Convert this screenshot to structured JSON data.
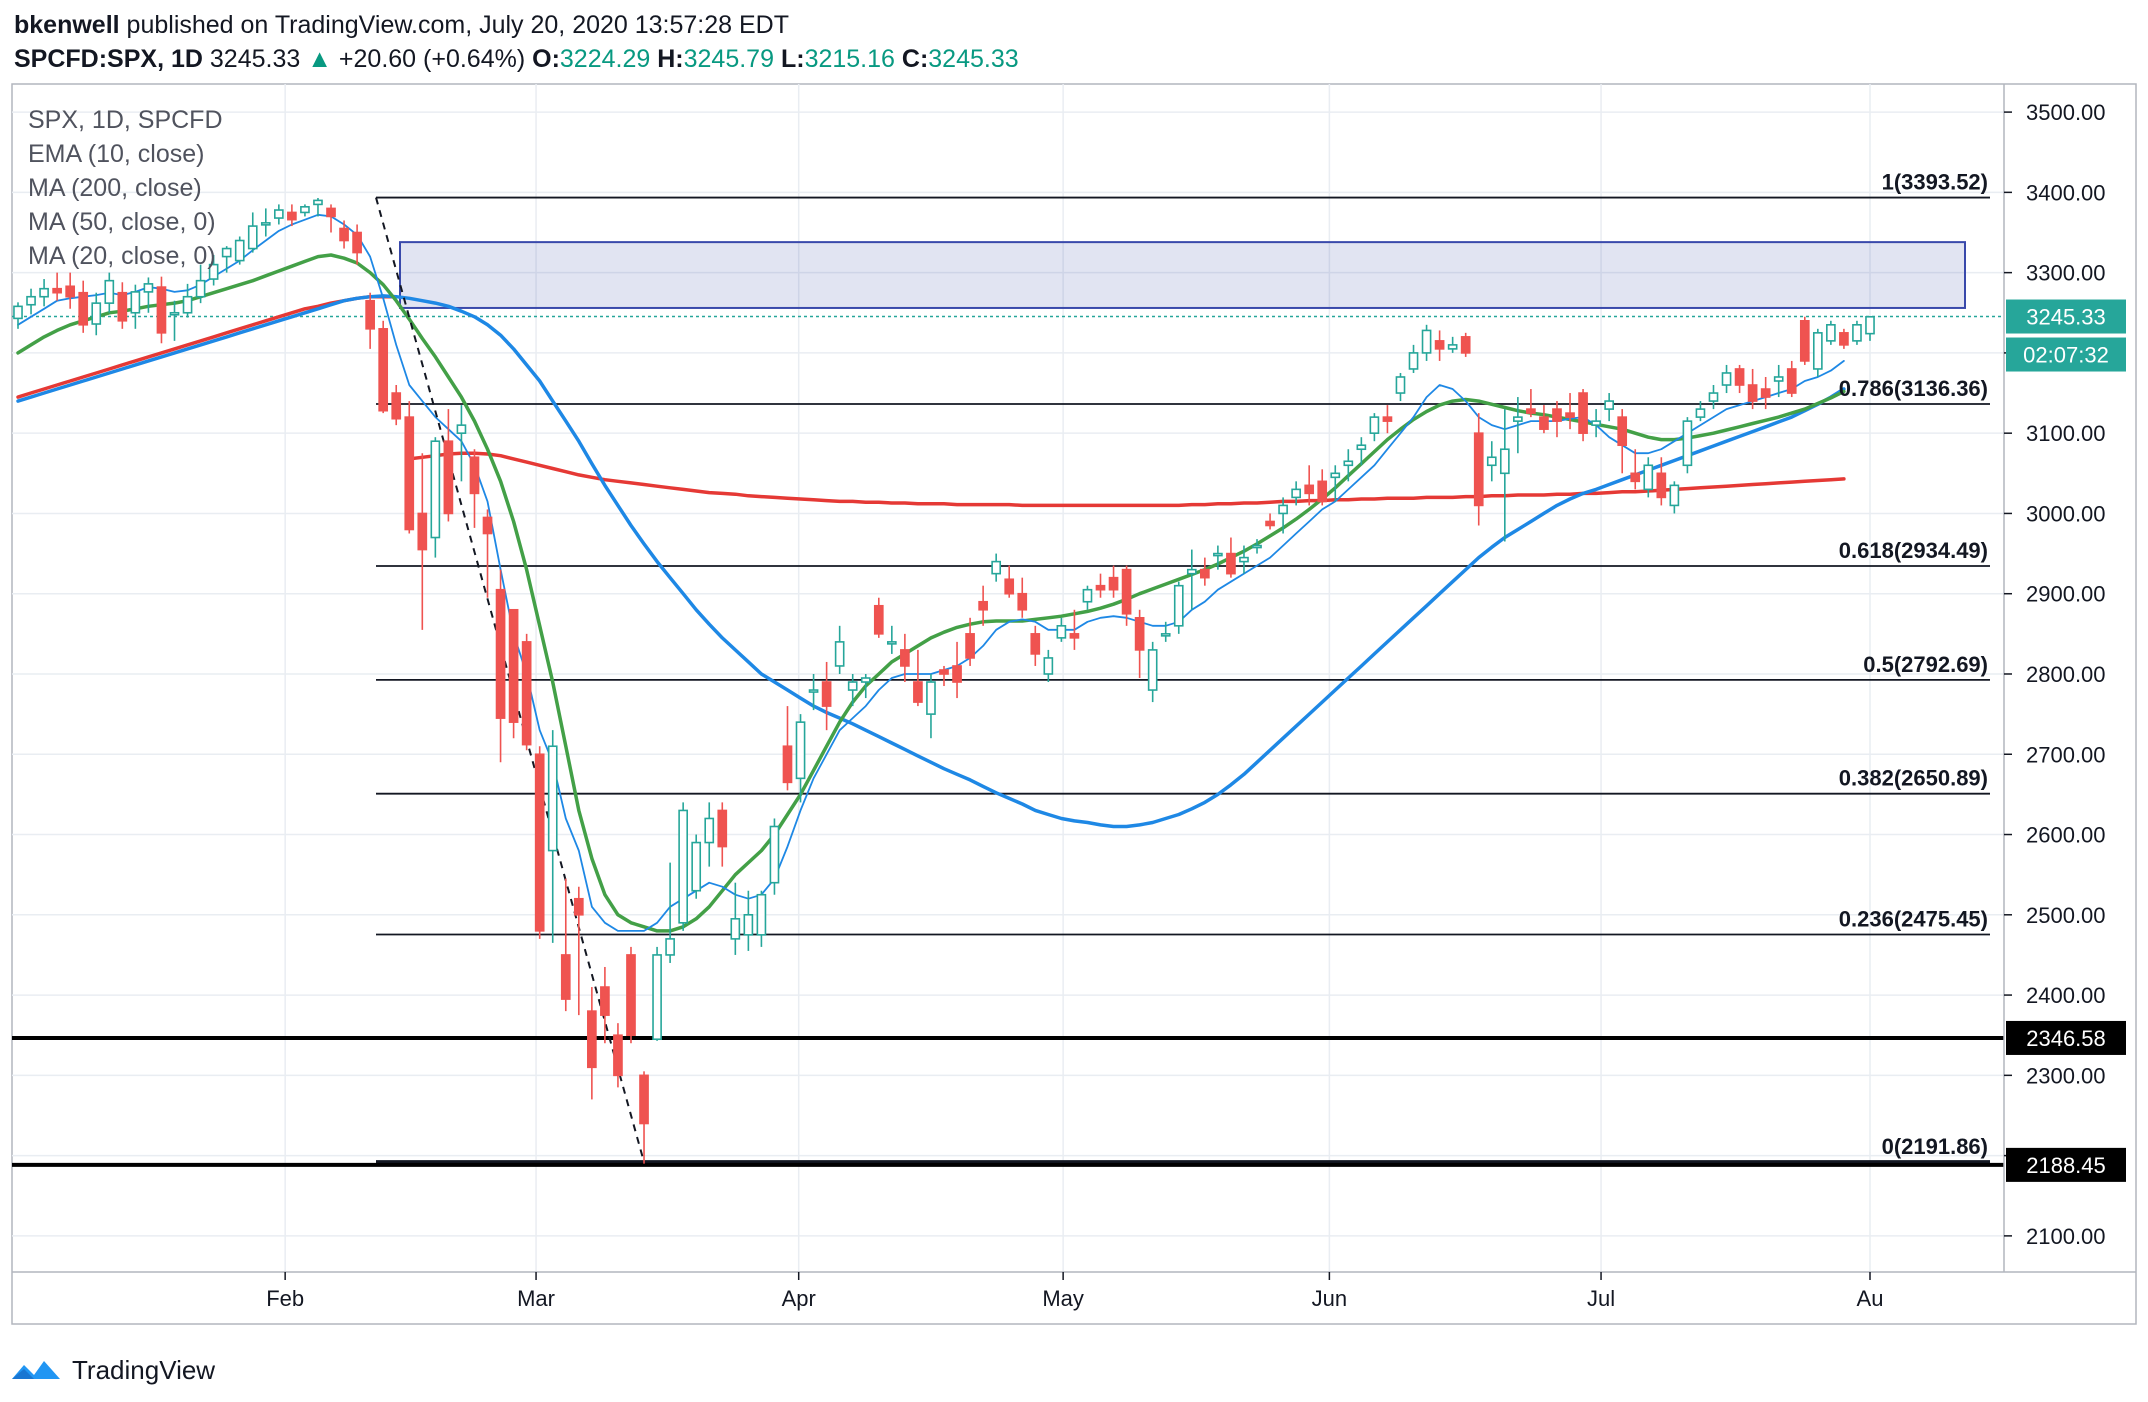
{
  "header": {
    "author": "bkenwell",
    "published": "published on TradingView.com, July 20, 2020 13:57:28 EDT",
    "symbol": "SPCFD:SPX, 1D",
    "price": "3245.33",
    "change": "+20.60 (+0.64%)",
    "open_label": "O:",
    "open": "3224.29",
    "high_label": "H:",
    "high": "3245.79",
    "low_label": "L:",
    "low": "3215.16",
    "close_label": "C:",
    "close": "3245.33"
  },
  "legend": {
    "symbol_line": "SPX, 1D, SPCFD",
    "indicators": [
      "EMA (10, close)",
      "MA (200, close)",
      "MA (50, close, 0)",
      "MA (20, close, 0)"
    ]
  },
  "footer": {
    "brand": "TradingView"
  },
  "colors": {
    "up": "#26a69a",
    "down": "#ef5350",
    "ema10": "#1e88e5",
    "ma200": "#e53935",
    "ma50": "#1e88e5",
    "ma20": "#43a047",
    "zone": "#3949ab",
    "grid": "#e9edf2"
  },
  "chart_data": {
    "type": "candlestick",
    "x_tick_labels": [
      "Feb",
      "Mar",
      "Apr",
      "May",
      "Jun",
      "Jul",
      "Au"
    ],
    "y_ticks": [
      2100,
      2200,
      2300,
      2400,
      2500,
      2600,
      2700,
      2800,
      2900,
      3000,
      3100,
      3200,
      3300,
      3400,
      3500
    ],
    "y_tick_labels": [
      "2100.00",
      "2200.00",
      "2300.00",
      "2400.00",
      "2500.00",
      "2600.00",
      "2700.00",
      "2800.00",
      "2900.00",
      "3000.00",
      "3100.00",
      "3200.00",
      "3300.00",
      "3400.00",
      "3500.00"
    ],
    "ylim": [
      2055,
      3535
    ],
    "candles": [
      [
        3243,
        3263,
        3230,
        3258
      ],
      [
        3260,
        3280,
        3248,
        3270
      ],
      [
        3270,
        3292,
        3258,
        3280
      ],
      [
        3280,
        3300,
        3265,
        3275
      ],
      [
        3283,
        3300,
        3255,
        3270
      ],
      [
        3275,
        3290,
        3225,
        3235
      ],
      [
        3236,
        3275,
        3222,
        3262
      ],
      [
        3262,
        3300,
        3250,
        3290
      ],
      [
        3275,
        3288,
        3230,
        3240
      ],
      [
        3250,
        3285,
        3230,
        3276
      ],
      [
        3276,
        3294,
        3250,
        3286
      ],
      [
        3282,
        3295,
        3212,
        3225
      ],
      [
        3250,
        3265,
        3215,
        3250
      ],
      [
        3250,
        3286,
        3244,
        3270
      ],
      [
        3270,
        3310,
        3262,
        3290
      ],
      [
        3292,
        3322,
        3284,
        3310
      ],
      [
        3320,
        3333,
        3300,
        3330
      ],
      [
        3315,
        3345,
        3310,
        3340
      ],
      [
        3330,
        3375,
        3325,
        3358
      ],
      [
        3360,
        3380,
        3345,
        3362
      ],
      [
        3368,
        3385,
        3360,
        3378
      ],
      [
        3375,
        3385,
        3358,
        3366
      ],
      [
        3375,
        3385,
        3370,
        3382
      ],
      [
        3385,
        3393,
        3370,
        3390
      ],
      [
        3380,
        3385,
        3350,
        3370
      ],
      [
        3355,
        3365,
        3330,
        3340
      ],
      [
        3350,
        3360,
        3310,
        3325
      ],
      [
        3265,
        3275,
        3205,
        3230
      ],
      [
        3230,
        3240,
        3125,
        3128
      ],
      [
        3150,
        3160,
        3110,
        3118
      ],
      [
        3120,
        3140,
        2975,
        2980
      ],
      [
        3000,
        3075,
        2855,
        2955
      ],
      [
        2970,
        3095,
        2945,
        3090
      ],
      [
        3090,
        3130,
        2990,
        3000
      ],
      [
        3100,
        3135,
        3040,
        3110
      ],
      [
        3070,
        3080,
        2982,
        3025
      ],
      [
        2995,
        3005,
        2895,
        2975
      ],
      [
        2905,
        2930,
        2690,
        2745
      ],
      [
        2880,
        2880,
        2720,
        2740
      ],
      [
        2840,
        2850,
        2705,
        2712
      ],
      [
        2700,
        2710,
        2470,
        2480
      ],
      [
        2580,
        2730,
        2465,
        2710
      ],
      [
        2450,
        2545,
        2380,
        2395
      ],
      [
        2520,
        2535,
        2375,
        2500
      ],
      [
        2380,
        2410,
        2270,
        2310
      ],
      [
        2410,
        2435,
        2340,
        2375
      ],
      [
        2350,
        2365,
        2285,
        2300
      ],
      [
        2450,
        2460,
        2340,
        2350
      ],
      [
        2300,
        2305,
        2190,
        2240
      ],
      [
        2345,
        2460,
        2343,
        2450
      ],
      [
        2450,
        2565,
        2440,
        2470
      ],
      [
        2490,
        2640,
        2480,
        2630
      ],
      [
        2530,
        2600,
        2520,
        2590
      ],
      [
        2590,
        2640,
        2560,
        2620
      ],
      [
        2630,
        2640,
        2560,
        2585
      ],
      [
        2470,
        2540,
        2450,
        2495
      ],
      [
        2475,
        2530,
        2455,
        2500
      ],
      [
        2475,
        2530,
        2460,
        2525
      ],
      [
        2540,
        2620,
        2525,
        2610
      ],
      [
        2710,
        2760,
        2655,
        2665
      ],
      [
        2670,
        2750,
        2640,
        2740
      ],
      [
        2780,
        2800,
        2755,
        2780
      ],
      [
        2790,
        2815,
        2730,
        2760
      ],
      [
        2810,
        2860,
        2800,
        2840
      ],
      [
        2780,
        2800,
        2760,
        2790
      ],
      [
        2790,
        2800,
        2770,
        2795
      ],
      [
        2885,
        2895,
        2845,
        2850
      ],
      [
        2840,
        2860,
        2825,
        2840
      ],
      [
        2830,
        2850,
        2790,
        2810
      ],
      [
        2790,
        2830,
        2760,
        2765
      ],
      [
        2750,
        2800,
        2720,
        2790
      ],
      [
        2805,
        2810,
        2785,
        2800
      ],
      [
        2810,
        2840,
        2770,
        2790
      ],
      [
        2850,
        2870,
        2810,
        2820
      ],
      [
        2890,
        2910,
        2860,
        2880
      ],
      [
        2925,
        2950,
        2915,
        2940
      ],
      [
        2918,
        2935,
        2895,
        2900
      ],
      [
        2900,
        2920,
        2870,
        2880
      ],
      [
        2850,
        2860,
        2810,
        2825
      ],
      [
        2800,
        2830,
        2790,
        2820
      ],
      [
        2845,
        2870,
        2840,
        2860
      ],
      [
        2850,
        2880,
        2830,
        2845
      ],
      [
        2890,
        2910,
        2880,
        2905
      ],
      [
        2910,
        2925,
        2895,
        2905
      ],
      [
        2920,
        2935,
        2895,
        2905
      ],
      [
        2930,
        2935,
        2860,
        2875
      ],
      [
        2870,
        2880,
        2795,
        2830
      ],
      [
        2780,
        2840,
        2765,
        2830
      ],
      [
        2850,
        2865,
        2840,
        2850
      ],
      [
        2860,
        2915,
        2850,
        2910
      ],
      [
        2925,
        2955,
        2880,
        2930
      ],
      [
        2930,
        2945,
        2910,
        2920
      ],
      [
        2950,
        2960,
        2930,
        2950
      ],
      [
        2950,
        2970,
        2920,
        2925
      ],
      [
        2940,
        2960,
        2925,
        2945
      ],
      [
        2960,
        2968,
        2950,
        2960
      ],
      [
        2990,
        3000,
        2980,
        2985
      ],
      [
        3000,
        3020,
        2975,
        3010
      ],
      [
        3020,
        3040,
        3010,
        3030
      ],
      [
        3035,
        3060,
        3010,
        3025
      ],
      [
        3040,
        3055,
        3010,
        3015
      ],
      [
        3045,
        3060,
        3015,
        3050
      ],
      [
        3060,
        3080,
        3040,
        3065
      ],
      [
        3080,
        3095,
        3060,
        3085
      ],
      [
        3100,
        3125,
        3090,
        3120
      ],
      [
        3120,
        3135,
        3100,
        3115
      ],
      [
        3150,
        3175,
        3140,
        3170
      ],
      [
        3180,
        3210,
        3175,
        3200
      ],
      [
        3200,
        3235,
        3190,
        3228
      ],
      [
        3215,
        3228,
        3190,
        3205
      ],
      [
        3205,
        3220,
        3200,
        3210
      ],
      [
        3220,
        3225,
        3195,
        3200
      ],
      [
        3100,
        3125,
        2985,
        3010
      ],
      [
        3060,
        3090,
        3040,
        3070
      ],
      [
        3050,
        3130,
        2965,
        3080
      ],
      [
        3115,
        3145,
        3075,
        3120
      ],
      [
        3130,
        3155,
        3120,
        3125
      ],
      [
        3120,
        3135,
        3100,
        3105
      ],
      [
        3130,
        3140,
        3095,
        3115
      ],
      [
        3125,
        3150,
        3105,
        3120
      ],
      [
        3150,
        3155,
        3090,
        3100
      ],
      [
        3110,
        3130,
        3095,
        3115
      ],
      [
        3130,
        3150,
        3115,
        3140
      ],
      [
        3120,
        3130,
        3050,
        3085
      ],
      [
        3050,
        3080,
        3030,
        3040
      ],
      [
        3030,
        3070,
        3020,
        3060
      ],
      [
        3050,
        3070,
        3010,
        3020
      ],
      [
        3010,
        3040,
        3000,
        3035
      ],
      [
        3060,
        3120,
        3050,
        3115
      ],
      [
        3120,
        3140,
        3115,
        3130
      ],
      [
        3140,
        3160,
        3130,
        3150
      ],
      [
        3160,
        3185,
        3150,
        3175
      ],
      [
        3180,
        3185,
        3150,
        3160
      ],
      [
        3160,
        3180,
        3130,
        3140
      ],
      [
        3155,
        3170,
        3130,
        3145
      ],
      [
        3165,
        3185,
        3145,
        3170
      ],
      [
        3180,
        3190,
        3145,
        3150
      ],
      [
        3240,
        3245,
        3185,
        3190
      ],
      [
        3180,
        3230,
        3170,
        3225
      ],
      [
        3215,
        3240,
        3210,
        3235
      ],
      [
        3225,
        3230,
        3205,
        3210
      ],
      [
        3215,
        3240,
        3210,
        3235
      ],
      [
        3224,
        3246,
        3215,
        3245
      ]
    ],
    "ema10": [
      3235,
      3245,
      3255,
      3265,
      3268,
      3270,
      3272,
      3275,
      3272,
      3276,
      3282,
      3280,
      3276,
      3278,
      3285,
      3295,
      3305,
      3315,
      3328,
      3340,
      3352,
      3360,
      3366,
      3372,
      3370,
      3360,
      3347,
      3320,
      3268,
      3210,
      3160,
      3140,
      3120,
      3105,
      3090,
      3060,
      3015,
      2930,
      2850,
      2800,
      2730,
      2690,
      2620,
      2580,
      2510,
      2490,
      2480,
      2480,
      2480,
      2490,
      2510,
      2520,
      2530,
      2540,
      2535,
      2525,
      2520,
      2525,
      2545,
      2585,
      2630,
      2670,
      2700,
      2730,
      2745,
      2760,
      2780,
      2795,
      2800,
      2800,
      2800,
      2805,
      2810,
      2820,
      2835,
      2855,
      2865,
      2868,
      2865,
      2855,
      2855,
      2855,
      2865,
      2870,
      2872,
      2870,
      2865,
      2860,
      2860,
      2865,
      2880,
      2890,
      2905,
      2915,
      2925,
      2935,
      2945,
      2960,
      2975,
      2990,
      3005,
      3015,
      3030,
      3045,
      3060,
      3080,
      3100,
      3120,
      3145,
      3160,
      3155,
      3140,
      3120,
      3110,
      3105,
      3110,
      3115,
      3115,
      3115,
      3118,
      3120,
      3110,
      3095,
      3085,
      3075,
      3075,
      3080,
      3090,
      3100,
      3110,
      3120,
      3130,
      3135,
      3140,
      3145,
      3150,
      3155,
      3165,
      3170,
      3178,
      3190
    ],
    "ma200": [
      3145,
      3150,
      3155,
      3160,
      3165,
      3170,
      3175,
      3180,
      3185,
      3190,
      3195,
      3200,
      3205,
      3210,
      3215,
      3220,
      3225,
      3230,
      3235,
      3240,
      3245,
      3250,
      3255,
      3258,
      3262,
      3265,
      3268,
      3270,
      3270,
      3270,
      3068,
      3070,
      3072,
      3074,
      3075,
      3075,
      3074,
      3072,
      3068,
      3064,
      3060,
      3056,
      3052,
      3048,
      3045,
      3042,
      3040,
      3038,
      3036,
      3034,
      3032,
      3030,
      3028,
      3026,
      3025,
      3024,
      3022,
      3021,
      3020,
      3019,
      3018,
      3017,
      3016,
      3015,
      3015,
      3014,
      3014,
      3013,
      3013,
      3012,
      3012,
      3012,
      3011,
      3011,
      3011,
      3011,
      3011,
      3010,
      3010,
      3010,
      3010,
      3010,
      3010,
      3010,
      3010,
      3010,
      3010,
      3010,
      3010,
      3010,
      3011,
      3011,
      3012,
      3012,
      3013,
      3013,
      3014,
      3015,
      3015,
      3016,
      3016,
      3017,
      3017,
      3018,
      3018,
      3019,
      3019,
      3019,
      3020,
      3020,
      3020,
      3021,
      3021,
      3022,
      3022,
      3023,
      3023,
      3023,
      3024,
      3024,
      3025,
      3025,
      3026,
      3027,
      3027,
      3028,
      3029,
      3030,
      3031,
      3032,
      3033,
      3034,
      3035,
      3036,
      3037,
      3038,
      3039,
      3040,
      3041,
      3042,
      3043
    ],
    "ma50": [
      3140,
      3145,
      3150,
      3155,
      3160,
      3165,
      3170,
      3175,
      3180,
      3185,
      3190,
      3195,
      3200,
      3205,
      3210,
      3215,
      3220,
      3225,
      3230,
      3235,
      3240,
      3245,
      3250,
      3255,
      3260,
      3265,
      3268,
      3270,
      3271,
      3270,
      3268,
      3265,
      3262,
      3258,
      3252,
      3245,
      3235,
      3222,
      3205,
      3185,
      3165,
      3140,
      3115,
      3090,
      3062,
      3035,
      3010,
      2985,
      2962,
      2940,
      2920,
      2900,
      2880,
      2862,
      2845,
      2830,
      2815,
      2800,
      2790,
      2780,
      2770,
      2760,
      2752,
      2745,
      2738,
      2730,
      2722,
      2714,
      2706,
      2698,
      2690,
      2682,
      2675,
      2668,
      2660,
      2652,
      2645,
      2638,
      2630,
      2625,
      2620,
      2617,
      2615,
      2612,
      2610,
      2610,
      2612,
      2615,
      2620,
      2625,
      2632,
      2640,
      2650,
      2662,
      2675,
      2690,
      2705,
      2720,
      2735,
      2750,
      2765,
      2780,
      2795,
      2810,
      2825,
      2840,
      2855,
      2870,
      2885,
      2900,
      2915,
      2930,
      2945,
      2958,
      2970,
      2980,
      2990,
      3000,
      3010,
      3018,
      3025,
      3030,
      3036,
      3042,
      3048,
      3054,
      3060,
      3066,
      3072,
      3078,
      3084,
      3090,
      3096,
      3102,
      3108,
      3114,
      3120,
      3128,
      3136,
      3145,
      3155
    ],
    "ma20": [
      3200,
      3210,
      3220,
      3228,
      3235,
      3240,
      3245,
      3250,
      3252,
      3255,
      3258,
      3260,
      3262,
      3265,
      3270,
      3275,
      3280,
      3285,
      3290,
      3296,
      3302,
      3308,
      3314,
      3320,
      3322,
      3318,
      3312,
      3300,
      3285,
      3265,
      3242,
      3218,
      3195,
      3170,
      3145,
      3115,
      3080,
      3040,
      2990,
      2930,
      2860,
      2790,
      2710,
      2630,
      2570,
      2525,
      2500,
      2490,
      2485,
      2480,
      2480,
      2485,
      2495,
      2510,
      2530,
      2550,
      2565,
      2580,
      2600,
      2625,
      2650,
      2680,
      2710,
      2740,
      2765,
      2785,
      2800,
      2815,
      2825,
      2835,
      2845,
      2852,
      2858,
      2862,
      2865,
      2866,
      2866,
      2866,
      2868,
      2870,
      2872,
      2875,
      2878,
      2882,
      2887,
      2893,
      2900,
      2906,
      2912,
      2918,
      2924,
      2930,
      2937,
      2945,
      2953,
      2962,
      2972,
      2982,
      2993,
      3005,
      3018,
      3032,
      3047,
      3062,
      3077,
      3092,
      3105,
      3117,
      3127,
      3135,
      3140,
      3142,
      3140,
      3136,
      3132,
      3128,
      3125,
      3123,
      3120,
      3117,
      3114,
      3111,
      3108,
      3105,
      3100,
      3095,
      3092,
      3092,
      3094,
      3097,
      3100,
      3104,
      3108,
      3112,
      3116,
      3120,
      3125,
      3130,
      3137,
      3144,
      3152
    ],
    "fib_levels": [
      {
        "label": "1(3393.52)",
        "value": 3393.52
      },
      {
        "label": "0.786(3136.36)",
        "value": 3136.36
      },
      {
        "label": "0.618(2934.49)",
        "value": 2934.49
      },
      {
        "label": "0.5(2792.69)",
        "value": 2792.69
      },
      {
        "label": "0.382(2650.89)",
        "value": 2650.89
      },
      {
        "label": "0.236(2475.45)",
        "value": 2475.45
      },
      {
        "label": "0(2191.86)",
        "value": 2191.86
      }
    ],
    "resistance_zone": {
      "top": 3338,
      "bottom": 3256
    },
    "support_lines": [
      2346.58,
      2188.45
    ],
    "price_tags": [
      {
        "label": "3245.33",
        "value": 3245.33,
        "kind": "price"
      },
      {
        "label": "02:07:32",
        "value": 3194,
        "kind": "countdown"
      },
      {
        "label": "2346.58",
        "value": 2346.58,
        "kind": "level"
      },
      {
        "label": "2188.45",
        "value": 2188.45,
        "kind": "level"
      }
    ],
    "trend_line": {
      "from": 3393.52,
      "to": 2191.86
    }
  }
}
